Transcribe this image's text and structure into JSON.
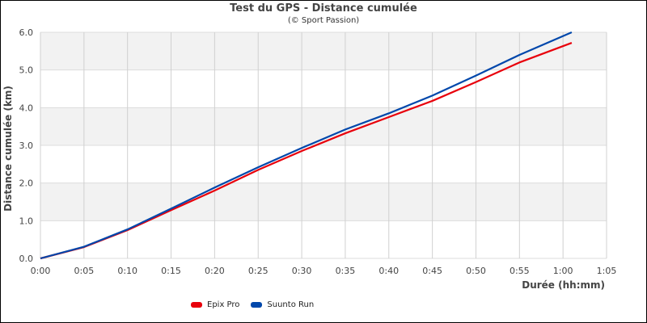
{
  "chart_data": {
    "type": "line",
    "title": "Test du GPS - Distance cumulée",
    "subtitle": "(© Sport Passion)",
    "xlabel": "Durée (hh:mm)",
    "ylabel": "Distance cumulée (km)",
    "xlim": [
      0,
      65
    ],
    "ylim": [
      0,
      6
    ],
    "x_ticks": [
      "0:00",
      "0:05",
      "0:10",
      "0:15",
      "0:20",
      "0:25",
      "0:30",
      "0:35",
      "0:40",
      "0:45",
      "0:50",
      "0:55",
      "1:00",
      "1:05"
    ],
    "y_ticks": [
      "0.0",
      "1.0",
      "2.0",
      "3.0",
      "4.0",
      "5.0",
      "6.0"
    ],
    "grid": true,
    "legend_position": "bottom",
    "x": [
      0,
      5,
      10,
      15,
      20,
      25,
      30,
      35,
      40,
      45,
      50,
      55,
      61
    ],
    "series": [
      {
        "name": "Epix Pro",
        "color": "#e8000b",
        "values": [
          0,
          0.3,
          0.75,
          1.28,
          1.8,
          2.35,
          2.85,
          3.32,
          3.75,
          4.18,
          4.68,
          5.2,
          5.72
        ]
      },
      {
        "name": "Suunto Run",
        "color": "#0047ab",
        "values": [
          0,
          0.31,
          0.77,
          1.32,
          1.88,
          2.42,
          2.93,
          3.42,
          3.85,
          4.32,
          4.85,
          5.4,
          6.0
        ]
      }
    ]
  }
}
